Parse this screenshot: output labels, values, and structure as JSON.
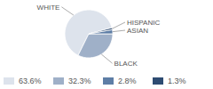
{
  "chart_data": {
    "type": "pie",
    "categories": [
      "WHITE",
      "BLACK",
      "ASIAN",
      "HISPANIC"
    ],
    "values": [
      63.6,
      32.3,
      2.8,
      1.3
    ],
    "value_labels": [
      "63.6%",
      "32.3%",
      "2.8%",
      "1.3%"
    ],
    "colors": [
      "#dde3ec",
      "#9fb0c8",
      "#5e7ea6",
      "#2e4c72"
    ],
    "legend": "bottom"
  }
}
